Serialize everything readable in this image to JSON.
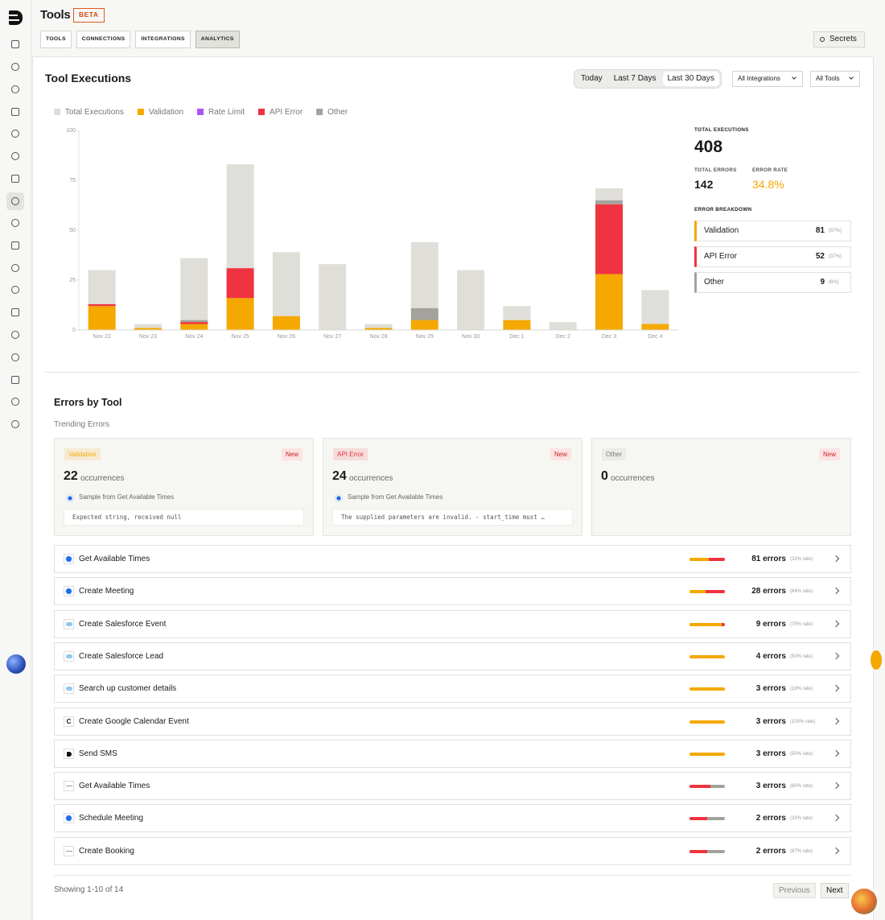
{
  "header": {
    "title": "Tools",
    "badge": "BETA",
    "tabs": [
      "TOOLS",
      "CONNECTIONS",
      "INTEGRATIONS",
      "ANALYTICS"
    ],
    "active_tab": "ANALYTICS",
    "secrets": "Secrets"
  },
  "section": {
    "title": "Tool Executions",
    "ranges": [
      "Today",
      "Last 7 Days",
      "Last 30 Days"
    ],
    "active_range": "Last 30 Days",
    "filters": [
      "All Integrations",
      "All Tools"
    ]
  },
  "chart_data": {
    "type": "bar",
    "stacked": true,
    "categories": [
      "Nov 22",
      "Nov 23",
      "Nov 24",
      "Nov 25",
      "Nov 26",
      "Nov 27",
      "Nov 28",
      "Nov 29",
      "Nov 30",
      "Dec 1",
      "Dec 2",
      "Dec 3",
      "Dec 4"
    ],
    "series": [
      {
        "name": "Total Executions",
        "color": "#dfded8",
        "values": [
          17,
          2,
          31,
          52,
          32,
          33,
          2,
          33,
          30,
          7,
          4,
          6,
          17
        ]
      },
      {
        "name": "Validation",
        "color": "#f5a800",
        "values": [
          12,
          1,
          3,
          16,
          7,
          0,
          1,
          5,
          0,
          5,
          0,
          28,
          3
        ]
      },
      {
        "name": "Rate Limit",
        "color": "#a855f7",
        "values": [
          0,
          0,
          0,
          0,
          0,
          0,
          0,
          0,
          0,
          0,
          0,
          0,
          0
        ]
      },
      {
        "name": "API Error",
        "color": "#ef3340",
        "values": [
          1,
          0,
          1,
          15,
          0,
          0,
          0,
          0,
          0,
          0,
          0,
          35,
          0
        ]
      },
      {
        "name": "Other",
        "color": "#a3a29c",
        "values": [
          0,
          0,
          1,
          0,
          0,
          0,
          0,
          6,
          0,
          0,
          0,
          2,
          0
        ]
      }
    ],
    "ylim": [
      0,
      100
    ],
    "yticks": [
      0,
      25,
      50,
      75,
      100
    ],
    "grid": false
  },
  "stats": {
    "total_label": "TOTAL EXECUTIONS",
    "total": "408",
    "errors_label": "TOTAL ERRORS",
    "errors": "142",
    "rate_label": "ERROR RATE",
    "rate": "34.8%",
    "breakdown_label": "ERROR BREAKDOWN",
    "breakdown": [
      {
        "name": "Validation",
        "count": "81",
        "share": "(57%)",
        "color": "#f5a800"
      },
      {
        "name": "API Error",
        "count": "52",
        "share": "(37%)",
        "color": "#ef3340"
      },
      {
        "name": "Other",
        "count": "9",
        "share": "(6%)",
        "color": "#a3a29c"
      }
    ]
  },
  "errors": {
    "title": "Errors by Tool",
    "subtitle": "Trending Errors",
    "cards": [
      {
        "type": "Validation",
        "color": "#f5a800",
        "badge": "New",
        "count": "22",
        "unit": "occurrences",
        "sample": "Sample from Get Available Times",
        "message": "Expected string, received null"
      },
      {
        "type": "API Error",
        "color": "#ef3340",
        "badge": "New",
        "count": "24",
        "unit": "occurrences",
        "sample": "Sample from Get Available Times",
        "message": "The supplied parameters are invalid. - start_time must …"
      },
      {
        "type": "Other",
        "color": "#a3a29c",
        "badge": "New",
        "count": "0",
        "unit": "occurrences"
      }
    ],
    "rows": [
      {
        "name": "Get Available Times",
        "errors": "81 errors",
        "rate": "(32% rate)",
        "mix": [
          {
            "color": "#f5a800",
            "value": 55
          },
          {
            "color": "#ef3340",
            "value": 45
          }
        ]
      },
      {
        "name": "Create Meeting",
        "errors": "28 errors",
        "rate": "(64% rate)",
        "mix": [
          {
            "color": "#f5a800",
            "value": 45
          },
          {
            "color": "#ef3340",
            "value": 55
          }
        ]
      },
      {
        "name": "Create Salesforce Event",
        "errors": "9 errors",
        "rate": "(75% rate)",
        "mix": [
          {
            "color": "#f5a800",
            "value": 90
          },
          {
            "color": "#ef3340",
            "value": 10
          }
        ]
      },
      {
        "name": "Create Salesforce Lead",
        "errors": "4 errors",
        "rate": "(50% rate)",
        "mix": [
          {
            "color": "#f5a800",
            "value": 100
          }
        ]
      },
      {
        "name": "Search up customer details",
        "errors": "3 errors",
        "rate": "(19% rate)",
        "mix": [
          {
            "color": "#f5a800",
            "value": 100
          }
        ]
      },
      {
        "name": "Create Google Calendar Event",
        "icon_label": "C",
        "errors": "3 errors",
        "rate": "(100% rate)",
        "mix": [
          {
            "color": "#f5a800",
            "value": 100
          }
        ]
      },
      {
        "name": "Send SMS",
        "errors": "3 errors",
        "rate": "(50% rate)",
        "mix": [
          {
            "color": "#f5a800",
            "value": 100
          }
        ]
      },
      {
        "name": "Get Available Times",
        "errors": "3 errors",
        "rate": "(60% rate)",
        "mix": [
          {
            "color": "#ef3340",
            "value": 60
          },
          {
            "color": "#a3a29c",
            "value": 40
          }
        ]
      },
      {
        "name": "Schedule Meeting",
        "errors": "2 errors",
        "rate": "(33% rate)",
        "mix": [
          {
            "color": "#ef3340",
            "value": 50
          },
          {
            "color": "#a3a29c",
            "value": 50
          }
        ]
      },
      {
        "name": "Create Booking",
        "errors": "2 errors",
        "rate": "(67% rate)",
        "mix": [
          {
            "color": "#ef3340",
            "value": 50
          },
          {
            "color": "#a3a29c",
            "value": 50
          }
        ]
      }
    ],
    "footer": "Showing 1-10 of 14",
    "prev": "Previous",
    "next": "Next"
  }
}
